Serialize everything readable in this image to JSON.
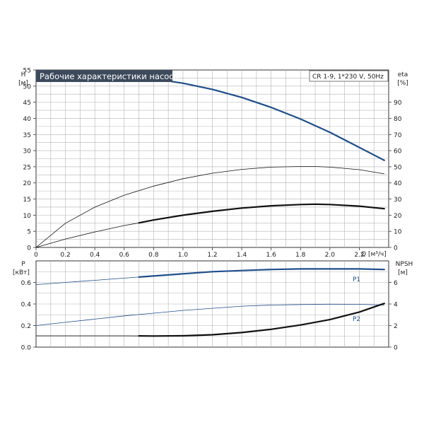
{
  "header": {
    "title": "Рабочие характеристики насоса",
    "model": "CR 1-9, 1*230 V, 50Hz"
  },
  "colors": {
    "title_bg": "#3d4a5c",
    "title_text": "#ffffff",
    "grid": "#b4b4b4",
    "frame": "#333333",
    "blue_curve": "#1f4e8c",
    "black_curve": "#111111",
    "text": "#222222"
  },
  "chart_data": [
    {
      "type": "line",
      "name": "top-panel",
      "x_axis": {
        "label": "Q [м³/ч]",
        "min": 0,
        "max": 2.4,
        "ticks": [
          "0",
          "0.2",
          "0.4",
          "0.6",
          "0.8",
          "1.0",
          "1.2",
          "1.4",
          "1.6",
          "1.8",
          "2.0",
          "2.2"
        ],
        "tick_values": [
          0,
          0.2,
          0.4,
          0.6,
          0.8,
          1.0,
          1.2,
          1.4,
          1.6,
          1.8,
          2.0,
          2.2
        ]
      },
      "y_left": {
        "symbol": "H",
        "unit": "[м]",
        "min": 0,
        "max": 55,
        "ticks": [
          "0",
          "5",
          "10",
          "15",
          "20",
          "25",
          "30",
          "35",
          "40",
          "45",
          "50",
          "55"
        ],
        "tick_values": [
          0,
          5,
          10,
          15,
          20,
          25,
          30,
          35,
          40,
          45,
          50,
          55
        ]
      },
      "y_right": {
        "symbol": "eta",
        "unit": "[%]",
        "min": 0,
        "max": 110,
        "ticks": [
          "0",
          "10",
          "20",
          "30",
          "40",
          "50",
          "60",
          "70",
          "80",
          "90"
        ],
        "tick_values": [
          0,
          10,
          20,
          30,
          40,
          50,
          60,
          70,
          80,
          90
        ]
      },
      "grid": true,
      "series": [
        {
          "axis": "left",
          "style": "blue-thick-and-thin",
          "thick_from": 0.7,
          "x": [
            0,
            0.2,
            0.4,
            0.6,
            0.7,
            0.8,
            1.0,
            1.2,
            1.4,
            1.6,
            1.8,
            2.0,
            2.2,
            2.37
          ],
          "y": [
            54.5,
            54.2,
            53.8,
            53.2,
            52.9,
            52.3,
            50.9,
            49.0,
            46.5,
            43.4,
            39.8,
            35.7,
            31.0,
            27.0
          ]
        },
        {
          "axis": "left",
          "style": "black-thin",
          "x": [
            0,
            0.2,
            0.4,
            0.6,
            0.8,
            1.0,
            1.2,
            1.4,
            1.6,
            1.8,
            1.9,
            2.0,
            2.2,
            2.37
          ],
          "y": [
            0,
            7.5,
            12.5,
            16.2,
            19.0,
            21.3,
            23.0,
            24.2,
            24.9,
            25.1,
            25.1,
            24.9,
            24.1,
            22.8
          ]
        },
        {
          "axis": "left",
          "style": "black-thin-and-thick",
          "thick_from": 0.7,
          "x": [
            0,
            0.2,
            0.4,
            0.6,
            0.7,
            0.8,
            1.0,
            1.2,
            1.4,
            1.6,
            1.8,
            1.9,
            2.0,
            2.2,
            2.37
          ],
          "y": [
            0,
            2.6,
            4.8,
            6.8,
            7.6,
            8.5,
            10.0,
            11.2,
            12.2,
            12.9,
            13.3,
            13.4,
            13.3,
            12.8,
            12.0
          ]
        }
      ]
    },
    {
      "type": "line",
      "name": "bottom-panel",
      "x_axis": {
        "min": 0,
        "max": 2.4
      },
      "y_left": {
        "symbol": "P",
        "unit": "[кВт]",
        "min": 0,
        "max": 0.8,
        "ticks": [
          "0.0",
          "0.2",
          "0.4",
          "0.6"
        ],
        "tick_values": [
          0,
          0.2,
          0.4,
          0.6
        ]
      },
      "y_right": {
        "symbol": "NPSH",
        "unit": "[м]",
        "min": 0,
        "max": 8,
        "ticks": [
          "0",
          "2",
          "4",
          "6"
        ],
        "tick_values": [
          0,
          2,
          4,
          6
        ]
      },
      "grid": true,
      "series": [
        {
          "name": "P1",
          "axis": "left",
          "style": "blue-thin-and-thick",
          "thick_from": 0.7,
          "x": [
            0,
            0.2,
            0.4,
            0.6,
            0.7,
            0.8,
            1.0,
            1.2,
            1.4,
            1.6,
            1.8,
            2.0,
            2.2,
            2.37
          ],
          "y": [
            0.58,
            0.6,
            0.62,
            0.64,
            0.65,
            0.66,
            0.68,
            0.7,
            0.71,
            0.72,
            0.725,
            0.725,
            0.725,
            0.72
          ]
        },
        {
          "name": "P2",
          "axis": "left",
          "style": "blue-thin",
          "x": [
            0,
            0.2,
            0.4,
            0.6,
            0.8,
            1.0,
            1.2,
            1.4,
            1.6,
            1.8,
            2.0,
            2.2,
            2.37
          ],
          "y": [
            0.2,
            0.23,
            0.26,
            0.29,
            0.315,
            0.34,
            0.36,
            0.38,
            0.39,
            0.395,
            0.398,
            0.397,
            0.39
          ]
        },
        {
          "axis": "right",
          "style": "black-thin-and-thick",
          "thick_from": 0.7,
          "x": [
            0,
            0.2,
            0.4,
            0.6,
            0.7,
            0.8,
            1.0,
            1.2,
            1.4,
            1.6,
            1.8,
            2.0,
            2.2,
            2.37
          ],
          "y": [
            1.05,
            1.05,
            1.05,
            1.05,
            1.04,
            1.03,
            1.05,
            1.15,
            1.35,
            1.65,
            2.05,
            2.55,
            3.25,
            4.05
          ]
        }
      ]
    }
  ]
}
